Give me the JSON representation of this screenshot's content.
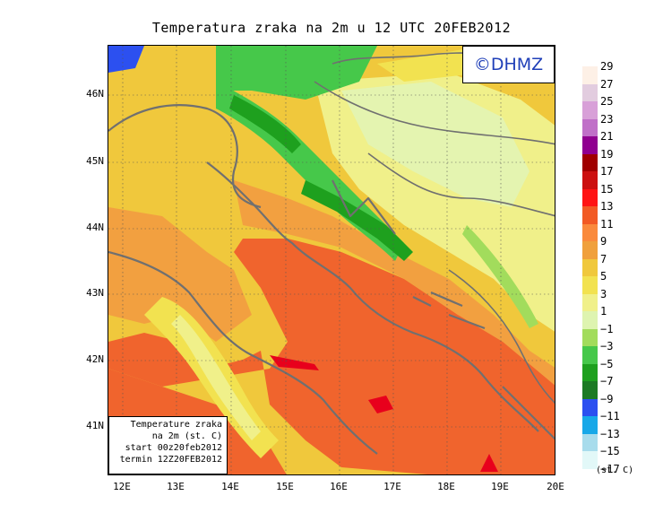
{
  "title": "Temperatura zraka na 2m u 12 UTC 20FEB2012",
  "logo": "©DHMZ",
  "info": {
    "line1": "Temperature zraka",
    "line2": "na 2m (st. C)",
    "line3": "start 00z20feb2012",
    "line4": "termin 12Z20FEB2012"
  },
  "lat_labels": [
    "46N",
    "45N",
    "44N",
    "43N",
    "42N",
    "41N"
  ],
  "lon_labels": [
    "12E",
    "13E",
    "14E",
    "15E",
    "16E",
    "17E",
    "18E",
    "19E",
    "20E"
  ],
  "legend": {
    "values": [
      "29",
      "27",
      "25",
      "23",
      "21",
      "19",
      "17",
      "15",
      "13",
      "11",
      "9",
      "7",
      "5",
      "3",
      "1",
      "−1",
      "−3",
      "−5",
      "−7",
      "−9",
      "−11",
      "−13",
      "−15",
      "−17"
    ],
    "unit": "(st. C)",
    "colors": [
      "#fdf0e6",
      "#e2ccdf",
      "#d8a0d8",
      "#c070c8",
      "#900090",
      "#a00000",
      "#cc1010",
      "#ff1414",
      "#f25a24",
      "#fa8a3c",
      "#f0a03c",
      "#f0c83c",
      "#f2e250",
      "#f0f08a",
      "#def4b0",
      "#a2dc5c",
      "#46c84a",
      "#1ea01e",
      "#1c7a24",
      "#2c50f0",
      "#18a8e8",
      "#a8dcec",
      "#e2f8f8"
    ]
  },
  "colors": {
    "sea": "#f0642d",
    "sea_hot": "#e8001c",
    "coast_warm": "#f2a040",
    "inland_yellow": "#f2e250",
    "inland_pale": "#f0f08a",
    "inland_light": "#e4f4b0",
    "mountain_green": "#46c84a",
    "mountain_dark": "#1ea01e",
    "cold_blue": "#2c50f0",
    "border": "#707070"
  }
}
